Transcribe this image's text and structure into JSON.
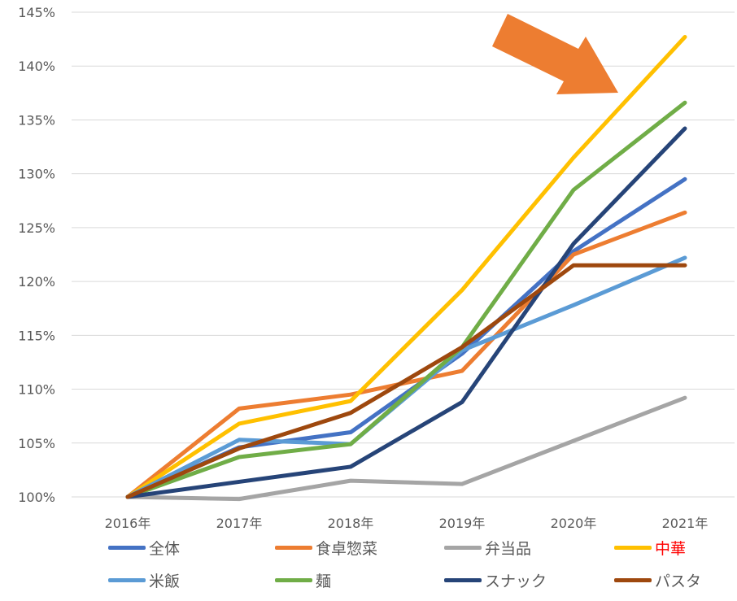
{
  "chart_data": {
    "type": "line",
    "categories": [
      "2016年",
      "2017年",
      "2018年",
      "2019年",
      "2020年",
      "2021年"
    ],
    "y_tick_labels": [
      "100%",
      "105%",
      "110%",
      "115%",
      "120%",
      "125%",
      "130%",
      "135%",
      "140%",
      "145%"
    ],
    "ylim": [
      100,
      145
    ],
    "grid": true,
    "legend_position": "bottom",
    "series": [
      {
        "name": "全体",
        "color": "#4472C4",
        "values": [
          100,
          104.6,
          106.0,
          113.3,
          122.8,
          129.5
        ]
      },
      {
        "name": "食卓惣菜",
        "color": "#ED7D31",
        "values": [
          100,
          108.2,
          109.5,
          111.7,
          122.5,
          126.4
        ]
      },
      {
        "name": "弁当品",
        "color": "#A5A5A5",
        "values": [
          100,
          99.8,
          101.5,
          101.2,
          105.2,
          109.2
        ]
      },
      {
        "name": "中華",
        "color": "#FFC000",
        "label_color": "#FF0000",
        "values": [
          100,
          106.8,
          108.9,
          119.2,
          131.5,
          142.7
        ]
      },
      {
        "name": "米飯",
        "color": "#5B9BD5",
        "values": [
          100,
          105.3,
          104.9,
          113.6,
          117.8,
          122.2
        ]
      },
      {
        "name": "麺",
        "color": "#70AD47",
        "values": [
          100,
          103.7,
          104.9,
          113.9,
          128.5,
          136.6
        ]
      },
      {
        "name": "スナック",
        "color": "#264478",
        "values": [
          100,
          101.4,
          102.8,
          108.8,
          123.5,
          134.2
        ]
      },
      {
        "name": "パスタ",
        "color": "#9E480E",
        "values": [
          100,
          104.5,
          107.8,
          113.9,
          121.5,
          121.5
        ]
      }
    ],
    "annotation": {
      "shape": "arrow",
      "color": "#ED7D31"
    }
  }
}
